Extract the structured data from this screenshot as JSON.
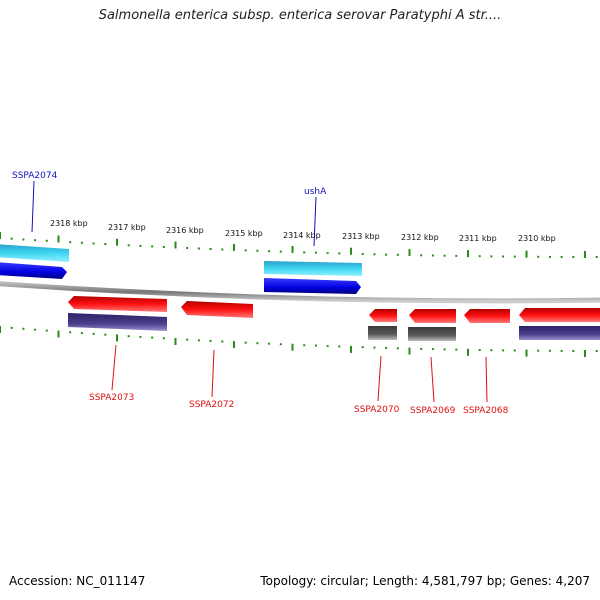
{
  "title": "Salmonella enterica subsp. enterica serovar Paratyphi A str....",
  "footer": {
    "accession": "Accession: NC_011147",
    "summary": "Topology: circular; Length: 4,581,797 bp; Genes: 4,207"
  },
  "scale_labels": [
    "2318 kbp",
    "2317 kbp",
    "2316 kbp",
    "2315 kbp",
    "2314 kbp",
    "2313 kbp",
    "2312 kbp",
    "2311 kbp",
    "2310 kbp"
  ],
  "gene_labels": [
    "SSPA2074",
    "ushA",
    "SSPA2073",
    "SSPA2072",
    "SSPA2070",
    "SSPA2069",
    "SSPA2068"
  ],
  "colors": {
    "forward_cds": "#0000ee",
    "forward_feature": "#17c6e6",
    "reverse_cds": "#ee0000",
    "reverse_feature_purple": "#4a3f8c",
    "reverse_feature_gray": "#5a5a5a",
    "backbone": "#8a8a8a",
    "ticks": "#2a8a1a"
  }
}
